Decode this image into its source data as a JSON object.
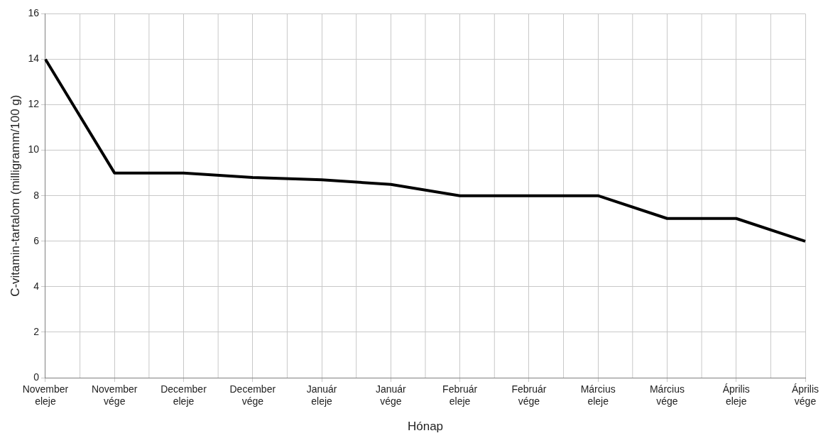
{
  "chart_data": {
    "type": "line",
    "xlabel": "Hónap",
    "ylabel": "C-vitamin-tartalom (milligramm/100 g)",
    "categories": [
      "November eleje",
      "November vége",
      "December eleje",
      "December vége",
      "Január eleje",
      "Január vége",
      "Február eleje",
      "Február vége",
      "Március eleje",
      "Március vége",
      "Április eleje",
      "Április vége"
    ],
    "series": [
      {
        "color": "#000000",
        "values": [
          14,
          9,
          9,
          8.8,
          8.7,
          8.5,
          8,
          8,
          8,
          7,
          7,
          6
        ]
      }
    ],
    "ylim": [
      0,
      16
    ],
    "yticks": [
      0,
      2,
      4,
      6,
      8,
      10,
      12,
      14,
      16
    ],
    "grid": true,
    "legend": false,
    "marker": "none",
    "line_style": "solid"
  }
}
